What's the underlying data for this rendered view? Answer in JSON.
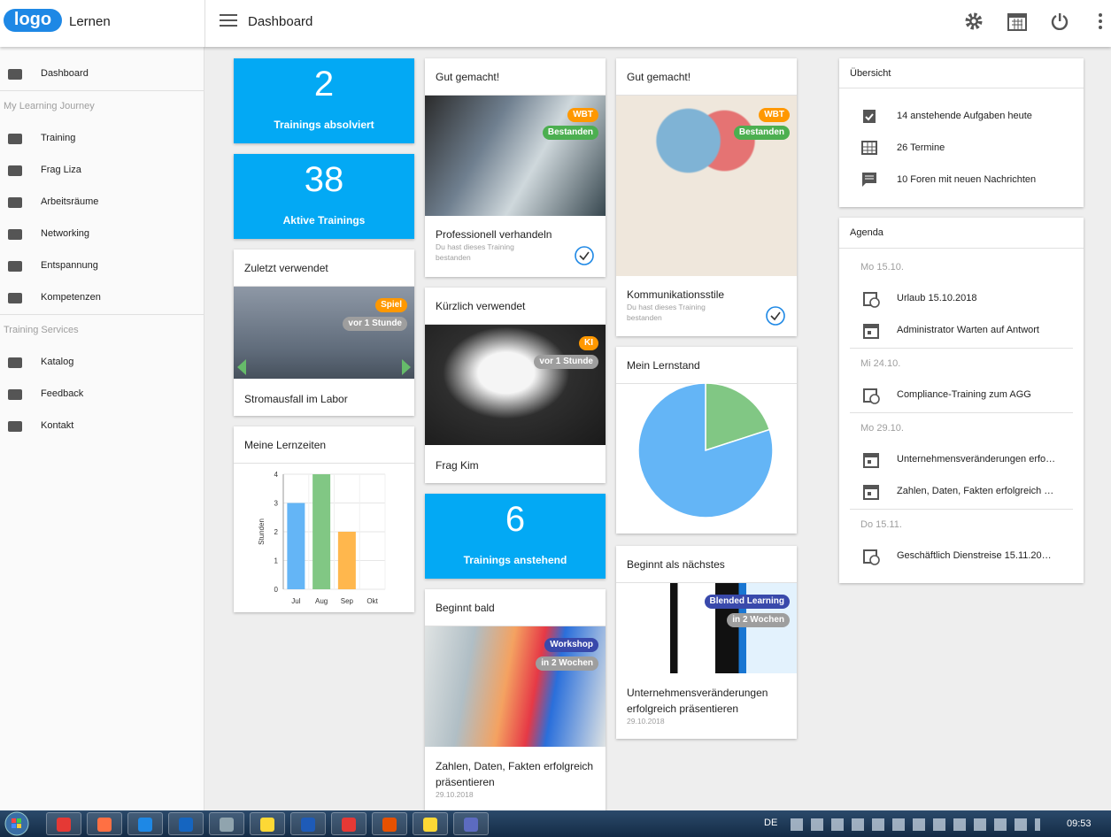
{
  "header": {
    "logo": "logo",
    "app_name": "Lernen",
    "title": "Dashboard"
  },
  "sidebar": {
    "dashboard": "Dashboard",
    "sections": [
      {
        "title": "My Learning Journey",
        "items": [
          "Training",
          "Frag Liza",
          "Arbeitsräume",
          "Networking",
          "Entspannung",
          "Kompetenzen"
        ]
      },
      {
        "title": "Training Services",
        "items": [
          "Katalog",
          "Feedback",
          "Kontakt"
        ]
      }
    ]
  },
  "stats": [
    {
      "value": 2,
      "label": "Trainings absolviert"
    },
    {
      "value": 38,
      "label": "Aktive Trainings"
    },
    {
      "value": 6,
      "label": "Trainings anstehend"
    }
  ],
  "recent_game": {
    "title": "Zuletzt verwendet",
    "badge": "Spiel",
    "time": "vor 1 Stunde",
    "name": "Stromausfall im Labor"
  },
  "learning_times": {
    "title": "Meine Lernzeiten",
    "chart": {
      "type": "bar",
      "y_label": "Stunden",
      "categories": [
        "Jul",
        "Aug",
        "Sep",
        "Okt"
      ],
      "values": [
        3,
        4,
        2,
        null
      ],
      "colors": [
        "#64b5f6",
        "#81c784",
        "#ffb74d",
        "#e57373"
      ],
      "ylim": [
        0,
        4
      ],
      "yticks": [
        0,
        1,
        2,
        3,
        4
      ],
      "grid": true
    }
  },
  "done_1": {
    "title": "Gut gemacht!",
    "badges": [
      "WBT",
      "Bestanden"
    ],
    "name": "Professionell verhandeln",
    "note": "Du hast dieses Training bestanden"
  },
  "recent_ki": {
    "title": "Kürzlich verwendet",
    "badge": "KI",
    "time": "vor 1 Stunde",
    "name": "Frag Kim"
  },
  "starting_soon": {
    "title": "Beginnt bald",
    "badge": "Workshop",
    "time": "in 2 Wochen",
    "name": "Zahlen, Daten, Fakten erfolgreich präsentieren",
    "date": "29.10.2018"
  },
  "done_2": {
    "title": "Gut gemacht!",
    "badges": [
      "WBT",
      "Bestanden"
    ],
    "name": "Kommunikationsstile",
    "note": "Du hast dieses Training bestanden"
  },
  "progress": {
    "title": "Mein Lernstand",
    "chart": {
      "type": "pie",
      "values": [
        20,
        80
      ],
      "colors": [
        "#81c784",
        "#64b5f6"
      ]
    }
  },
  "starting_next": {
    "title": "Beginnt als nächstes",
    "badge": "Blended Learning",
    "time": "in 2 Wochen",
    "name": "Unternehmensveränderungen erfolgreich präsentieren",
    "date": "29.10.2018"
  },
  "overview": {
    "title": "Übersicht",
    "items": [
      "14 anstehende Aufgaben heute",
      "26 Termine",
      "10 Foren mit neuen Nachrichten"
    ]
  },
  "agenda": {
    "title": "Agenda",
    "days": [
      {
        "date": "Mo 15.10.",
        "items": [
          "Urlaub 15.10.2018",
          "Administrator Warten auf Antwort"
        ]
      },
      {
        "date": "Mi 24.10.",
        "items": [
          "Compliance-Training zum AGG"
        ]
      },
      {
        "date": "Mo 29.10.",
        "items": [
          "Unternehmensveränderungen erfo…",
          "Zahlen, Daten, Fakten erfolgreich …"
        ]
      },
      {
        "date": "Do 15.11.",
        "items": [
          "Geschäftlich Dienstreise 15.11.20…"
        ]
      }
    ]
  },
  "taskbar": {
    "language": "DE",
    "time": "09:53"
  }
}
